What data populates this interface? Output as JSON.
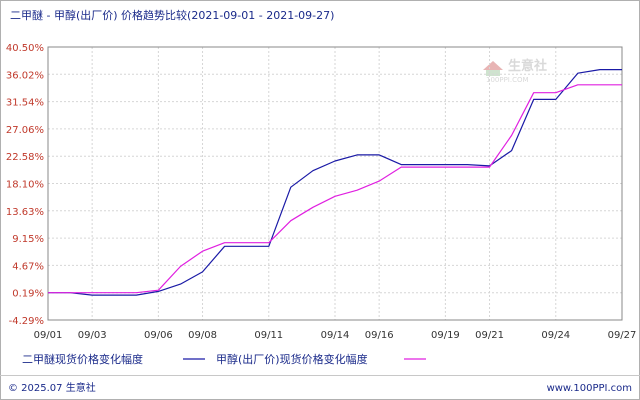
{
  "chart_data": {
    "type": "line",
    "title": "二甲醚 - 甲醇(出厂价) 价格趋势比较(2021-09-01 - 2021-09-27)",
    "x": [
      "09/01",
      "09/02",
      "09/03",
      "09/04",
      "09/05",
      "09/06",
      "09/07",
      "09/08",
      "09/09",
      "09/10",
      "09/11",
      "09/12",
      "09/13",
      "09/14",
      "09/15",
      "09/16",
      "09/17",
      "09/18",
      "09/19",
      "09/20",
      "09/21",
      "09/22",
      "09/23",
      "09/24",
      "09/25",
      "09/26",
      "09/27"
    ],
    "x_tick_labels": [
      "09/01",
      "09/03",
      "09/06",
      "09/08",
      "09/11",
      "09/14",
      "09/16",
      "09/19",
      "09/21",
      "09/24",
      "09/27"
    ],
    "y_tick_labels": [
      "40.50%",
      "36.02%",
      "31.54%",
      "27.06%",
      "22.58%",
      "18.10%",
      "13.63%",
      "9.15%",
      "4.67%",
      "0.19%",
      "-4.29%"
    ],
    "ylim": [
      -4.29,
      40.5
    ],
    "grid": true,
    "legend_position": "bottom-left",
    "series": [
      {
        "name": "二甲醚现货价格变化幅度",
        "color": "#1a1aa6",
        "values": [
          0.19,
          0.19,
          -0.2,
          -0.2,
          -0.2,
          0.4,
          1.6,
          3.6,
          7.8,
          7.8,
          7.8,
          17.5,
          20.2,
          21.8,
          22.8,
          22.8,
          21.2,
          21.2,
          21.2,
          21.2,
          21.0,
          23.5,
          31.9,
          31.9,
          36.2,
          36.8,
          36.8
        ]
      },
      {
        "name": "甲醇(出厂价)现货价格变化幅度",
        "color": "#e020e0",
        "values": [
          0.19,
          0.19,
          0.19,
          0.19,
          0.19,
          0.6,
          4.5,
          7.0,
          8.4,
          8.4,
          8.4,
          12.0,
          14.2,
          16.0,
          17.0,
          18.5,
          20.8,
          20.8,
          20.8,
          20.8,
          20.8,
          26.0,
          33.0,
          33.0,
          34.3,
          34.3,
          34.3
        ]
      }
    ]
  },
  "footer": {
    "copyright": "© 2025.07 生意社",
    "url": "www.100PPI.com"
  },
  "watermark": {
    "name": "生意社",
    "sub": "100PPI.COM"
  }
}
